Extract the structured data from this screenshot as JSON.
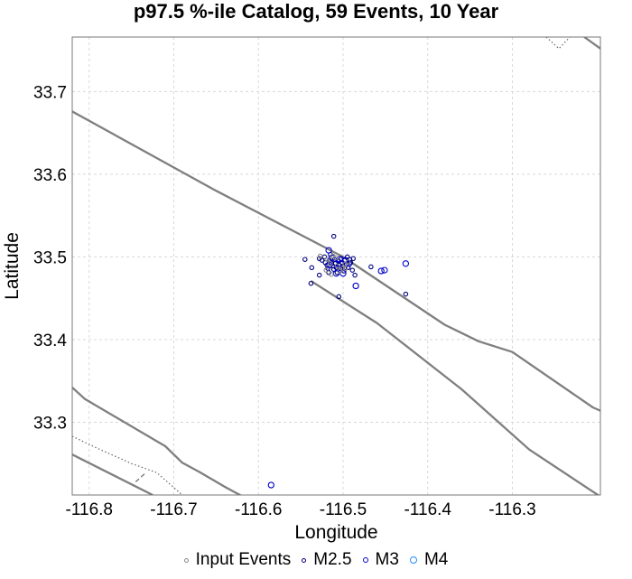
{
  "chart_data": {
    "type": "scatter",
    "title": "p97.5 %-ile Catalog, 59 Events, 10 Year",
    "xlabel": "Longitude",
    "ylabel": "Latitude",
    "xlim": [
      -116.82,
      -116.196
    ],
    "ylim": [
      33.212,
      33.766
    ],
    "x_ticks": [
      -116.8,
      -116.7,
      -116.6,
      -116.5,
      -116.4,
      -116.3
    ],
    "x_tick_labels": [
      "-116.8",
      "-116.7",
      "-116.6",
      "-116.5",
      "-116.4",
      "-116.3"
    ],
    "y_ticks": [
      33.3,
      33.4,
      33.5,
      33.6,
      33.7
    ],
    "y_tick_labels": [
      "33.3",
      "33.4",
      "33.5",
      "33.6",
      "33.7"
    ],
    "grid": true,
    "legend": {
      "position": "bottom",
      "entries": [
        {
          "name": "Input Events",
          "color": "#888888",
          "size": 4
        },
        {
          "name": "M2.5",
          "color": "#000080",
          "size": 4
        },
        {
          "name": "M3",
          "color": "#0000cc",
          "size": 5
        },
        {
          "name": "M4",
          "color": "#1e90ff",
          "size": 7
        }
      ]
    },
    "series": [
      {
        "name": "M2.5",
        "color": "#000080",
        "points": [
          [
            -116.545,
            33.497
          ],
          [
            -116.537,
            33.487
          ],
          [
            -116.538,
            33.468
          ],
          [
            -116.528,
            33.498
          ],
          [
            -116.525,
            33.496
          ],
          [
            -116.522,
            33.5
          ],
          [
            -116.521,
            33.493
          ],
          [
            -116.519,
            33.49
          ],
          [
            -116.518,
            33.486
          ],
          [
            -116.517,
            33.481
          ],
          [
            -116.516,
            33.496
          ],
          [
            -116.515,
            33.503
          ],
          [
            -116.514,
            33.493
          ],
          [
            -116.512,
            33.489
          ],
          [
            -116.511,
            33.485
          ],
          [
            -116.511,
            33.525
          ],
          [
            -116.51,
            33.497
          ],
          [
            -116.509,
            33.492
          ],
          [
            -116.508,
            33.487
          ],
          [
            -116.507,
            33.481
          ],
          [
            -116.506,
            33.495
          ],
          [
            -116.505,
            33.49
          ],
          [
            -116.505,
            33.452
          ],
          [
            -116.503,
            33.486
          ],
          [
            -116.502,
            33.498
          ],
          [
            -116.501,
            33.493
          ],
          [
            -116.5,
            33.489
          ],
          [
            -116.499,
            33.483
          ],
          [
            -116.498,
            33.496
          ],
          [
            -116.496,
            33.491
          ],
          [
            -116.495,
            33.5
          ],
          [
            -116.494,
            33.487
          ],
          [
            -116.492,
            33.497
          ],
          [
            -116.491,
            33.493
          ],
          [
            -116.489,
            33.484
          ],
          [
            -116.488,
            33.498
          ],
          [
            -116.486,
            33.478
          ],
          [
            -116.467,
            33.488
          ],
          [
            -116.426,
            33.455
          ],
          [
            -116.528,
            33.478
          ]
        ]
      },
      {
        "name": "M3",
        "color": "#0000cc",
        "points": [
          [
            -116.517,
            33.508
          ],
          [
            -116.513,
            33.499
          ],
          [
            -116.51,
            33.493
          ],
          [
            -116.508,
            33.48
          ],
          [
            -116.506,
            33.486
          ],
          [
            -116.504,
            33.497
          ],
          [
            -116.5,
            33.48
          ],
          [
            -116.497,
            33.496
          ],
          [
            -116.493,
            33.492
          ],
          [
            -116.485,
            33.465
          ],
          [
            -116.455,
            33.483
          ],
          [
            -116.451,
            33.484
          ],
          [
            -116.426,
            33.492
          ],
          [
            -116.585,
            33.224
          ],
          [
            -116.516,
            33.49
          ],
          [
            -116.503,
            33.492
          ]
        ]
      },
      {
        "name": "Input Events",
        "color": "#888888",
        "points": [
          [
            -116.527,
            33.501
          ],
          [
            -116.519,
            33.497
          ],
          [
            -116.512,
            33.501
          ],
          [
            -116.507,
            33.489
          ],
          [
            -116.501,
            33.486
          ],
          [
            -116.498,
            33.491
          ],
          [
            -116.494,
            33.494
          ],
          [
            -116.52,
            33.484
          ],
          [
            -116.514,
            33.479
          ],
          [
            -116.509,
            33.499
          ],
          [
            -116.504,
            33.483
          ],
          [
            -116.497,
            33.486
          ],
          [
            -116.515,
            33.492
          ]
        ]
      }
    ],
    "faults": [
      {
        "style": "solid",
        "width": 2.3,
        "points": [
          [
            -116.82,
            33.676
          ],
          [
            -116.65,
            33.58
          ],
          [
            -116.5,
            33.5
          ],
          [
            -116.38,
            33.418
          ],
          [
            -116.34,
            33.398
          ],
          [
            -116.3,
            33.385
          ],
          [
            -116.205,
            33.318
          ],
          [
            -116.196,
            33.314
          ]
        ]
      },
      {
        "style": "solid",
        "width": 2.3,
        "points": [
          [
            -116.538,
            33.471
          ],
          [
            -116.46,
            33.42
          ],
          [
            -116.36,
            33.34
          ],
          [
            -116.28,
            33.267
          ],
          [
            -116.196,
            33.21
          ]
        ]
      },
      {
        "style": "solid",
        "width": 2.3,
        "points": [
          [
            -116.82,
            33.342
          ],
          [
            -116.805,
            33.328
          ],
          [
            -116.71,
            33.271
          ],
          [
            -116.69,
            33.251
          ],
          [
            -116.67,
            33.24
          ],
          [
            -116.64,
            33.222
          ],
          [
            -116.62,
            33.211
          ]
        ]
      },
      {
        "style": "solid",
        "width": 2.3,
        "points": [
          [
            -116.82,
            33.261
          ],
          [
            -116.725,
            33.212
          ]
        ]
      },
      {
        "style": "solid",
        "width": 2.3,
        "points": [
          [
            -116.215,
            33.766
          ],
          [
            -116.196,
            33.752
          ]
        ]
      },
      {
        "style": "dotted",
        "width": 1.2,
        "points": [
          [
            -116.82,
            33.283
          ],
          [
            -116.785,
            33.266
          ],
          [
            -116.75,
            33.25
          ],
          [
            -116.72,
            33.239
          ],
          [
            -116.69,
            33.212
          ]
        ]
      },
      {
        "style": "dotted",
        "width": 1.2,
        "points": [
          [
            -116.26,
            33.766
          ],
          [
            -116.245,
            33.752
          ],
          [
            -116.232,
            33.766
          ]
        ]
      },
      {
        "style": "dashed",
        "width": 1.2,
        "points": [
          [
            -116.745,
            33.228
          ],
          [
            -116.734,
            33.238
          ]
        ]
      }
    ]
  }
}
